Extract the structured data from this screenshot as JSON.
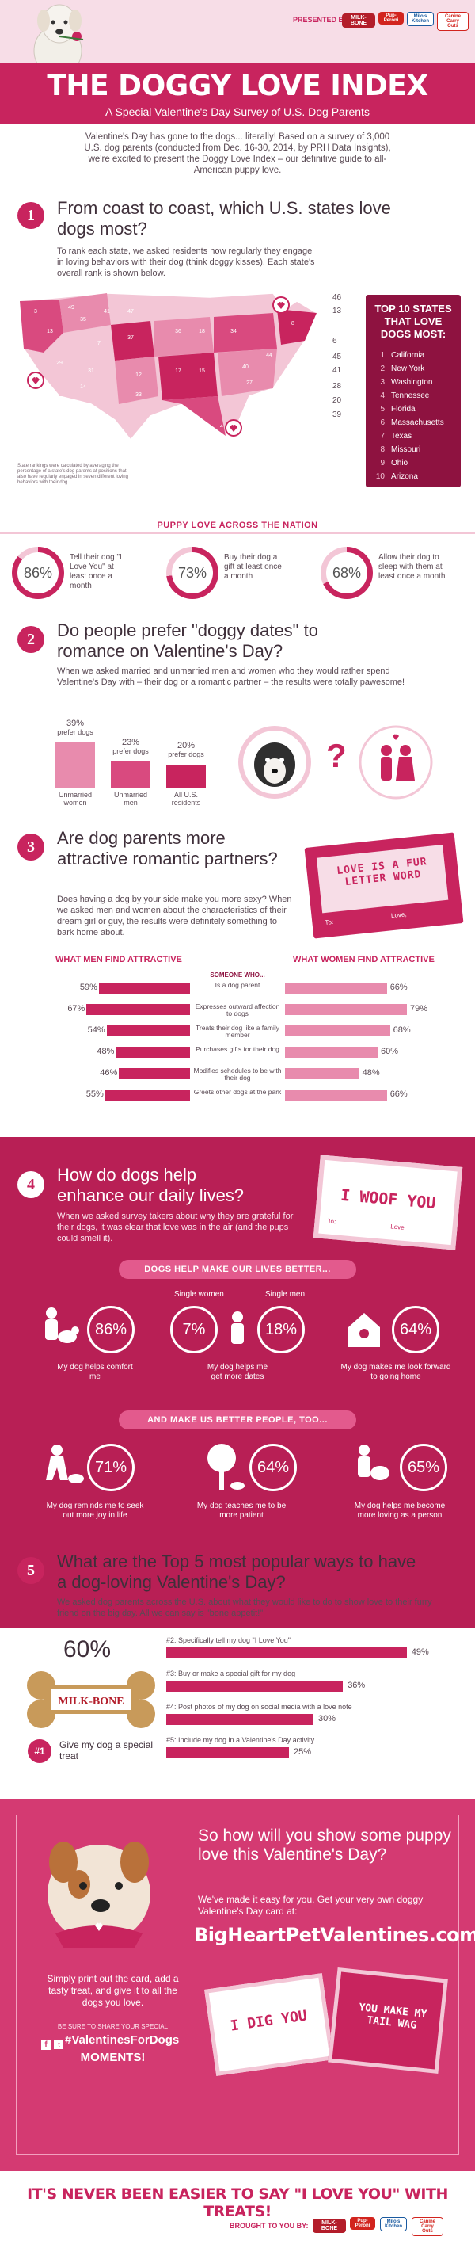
{
  "header": {
    "presented_by": "PRESENTED BY:",
    "brands": [
      "MILK-BONE",
      "Pup-Peroni",
      "Milo's Kitchen",
      "Canine Carry Outs"
    ],
    "title": "THE DOGGY LOVE INDEX",
    "subtitle": "A Special Valentine's Day Survey of U.S. Dog Parents",
    "intro": "Valentine's Day has gone to the dogs... literally! Based on a survey of 3,000 U.S. dog parents (conducted from Dec. 16-30, 2014, by PRH Data Insights), we're excited to present the Doggy Love Index – our definitive guide to all-American puppy love."
  },
  "section1": {
    "num": "1",
    "title": "From coast to coast, which U.S. states love dogs most?",
    "text": "To rank each state, we asked residents how regularly they engage in loving behaviors with their dog (think doggy kisses). Each state's overall rank is shown below.",
    "map_note": "State rankings were calculated by averaging the percentage of a state's dog parents at positions that also have regularly engaged in seven different loving behaviors with their dog.",
    "top10_title": "TOP 10 STATES THAT LOVE DOGS MOST:",
    "top10": [
      "California",
      "New York",
      "Washington",
      "Tennessee",
      "Florida",
      "Massachusetts",
      "Texas",
      "Missouri",
      "Ohio",
      "Arizona"
    ],
    "top10_nums": [
      "1",
      "2",
      "3",
      "4",
      "5",
      "6",
      "7",
      "8",
      "9",
      "10"
    ],
    "map_numbers": [
      "3",
      "49",
      "13",
      "35",
      "41",
      "47",
      "37",
      "36",
      "18",
      "34",
      "7",
      "29",
      "31",
      "12",
      "17",
      "15",
      "40",
      "14",
      "33",
      "5",
      "4",
      "27",
      "44",
      "8",
      "32",
      "48",
      "22",
      "38",
      "10",
      "26",
      "1",
      "30",
      "42",
      "11",
      "9",
      "39",
      "43",
      "45",
      "20",
      "23",
      "21",
      "6",
      "46",
      "24",
      "25",
      "16",
      "19",
      "28",
      "2",
      "50"
    ],
    "side_numbers": [
      "46",
      "13",
      "6",
      "45",
      "41",
      "28",
      "20",
      "39"
    ]
  },
  "puppy_love": {
    "banner": "PUPPY LOVE ACROSS THE NATION",
    "items": [
      {
        "pct": "86%",
        "text": "Tell their dog \"I Love You\" at least once a month"
      },
      {
        "pct": "73%",
        "text": "Buy their dog a gift at least once a month"
      },
      {
        "pct": "68%",
        "text": "Allow their dog to sleep with them at least once a month"
      }
    ]
  },
  "section2": {
    "num": "2",
    "title": "Do people prefer \"doggy dates\" to romance on Valentine's Day?",
    "text": "When we asked married and unmarried men and women who they would rather spend Valentine's Day with – their dog or a romantic partner – the results were totally pawesome!",
    "bars": [
      {
        "pct": "39%",
        "sub": "prefer dogs",
        "value": 39,
        "label": "Unmarried women"
      },
      {
        "pct": "23%",
        "sub": "prefer dogs",
        "value": 23,
        "label": "Unmarried men"
      },
      {
        "pct": "20%",
        "sub": "prefer dogs",
        "value": 20,
        "label": "All U.S. residents"
      }
    ],
    "question_mark": "?"
  },
  "section3": {
    "num": "3",
    "title": "Are dog parents more attractive romantic partners?",
    "text": "Does having a dog by your side make you more sexy? When we asked men and women about the characteristics of their dream girl or guy, the results were definitely something to bark home about.",
    "card_text": "LOVE IS A FUR LETTER WORD",
    "card_to": "To:",
    "card_from": "Love,",
    "men_header": "WHAT MEN FIND ATTRACTIVE",
    "women_header": "WHAT WOMEN FIND ATTRACTIVE",
    "middle_header": "SOMEONE WHO...",
    "rows": [
      {
        "label": "Is a dog parent",
        "men": 59,
        "men_pct": "59%",
        "women": 66,
        "women_pct": "66%"
      },
      {
        "label": "Expresses outward affection to dogs",
        "men": 67,
        "men_pct": "67%",
        "women": 79,
        "women_pct": "79%"
      },
      {
        "label": "Treats their dog like a family member",
        "men": 54,
        "men_pct": "54%",
        "women": 68,
        "women_pct": "68%"
      },
      {
        "label": "Purchases gifts for their dog",
        "men": 48,
        "men_pct": "48%",
        "women": 60,
        "women_pct": "60%"
      },
      {
        "label": "Modifies schedules to be with their dog",
        "men": 46,
        "men_pct": "46%",
        "women": 48,
        "women_pct": "48%"
      },
      {
        "label": "Greets other dogs at the park",
        "men": 55,
        "men_pct": "55%",
        "women": 66,
        "women_pct": "66%"
      }
    ]
  },
  "section4": {
    "num": "4",
    "title": "How do dogs help enhance our daily lives?",
    "text": "When we asked survey takers about why they are grateful for their dogs, it was clear that love was in the air (and the pups could smell it).",
    "card_text": "I WOOF YOU",
    "card_to": "To:",
    "card_from": "Love,",
    "banner1": "DOGS HELP MAKE OUR LIVES BETTER...",
    "single_women": "Single women",
    "single_men": "Single men",
    "better": [
      {
        "pct": "86%",
        "text": "My dog helps comfort me"
      },
      {
        "pct": "7%",
        "text": "My dog helps me"
      },
      {
        "pct": "18%",
        "text": "get more dates"
      },
      {
        "pct": "64%",
        "text": "My dog makes me look forward to going home"
      }
    ],
    "banner2": "AND MAKE US BETTER PEOPLE, TOO...",
    "people": [
      {
        "pct": "71%",
        "text": "My dog reminds me to seek out more joy in life"
      },
      {
        "pct": "64%",
        "text": "My dog teaches me to be more patient"
      },
      {
        "pct": "65%",
        "text": "My dog helps me become more loving as a person"
      }
    ]
  },
  "section5": {
    "num": "5",
    "title": "What are the Top 5 most popular ways to have a dog-loving Valentine's Day?",
    "text": "We asked dog parents across the U.S. about what they would like to do to show love to their furry friend on the big day. All we can say is \"bone appetit!\"",
    "top_pct": "60%",
    "bone_label": "MILK-BONE",
    "top_rank": "#1",
    "top_text": "Give my dog a special treat",
    "items": [
      {
        "label": "#2: Specifically tell my dog \"I Love You\"",
        "value": 49,
        "pct": "49%"
      },
      {
        "label": "#3: Buy or make a special gift for my dog",
        "value": 36,
        "pct": "36%"
      },
      {
        "label": "#4: Post photos of my dog on social media with a love note",
        "value": 30,
        "pct": "30%"
      },
      {
        "label": "#5: Include my dog in a Valentine's Day activity",
        "value": 25,
        "pct": "25%"
      }
    ]
  },
  "cta": {
    "title": "So how will you show some puppy love this Valentine's Day?",
    "text": "We've made it easy for you. Get your very own doggy Valentine's Day card at:",
    "url": "BigHeartPetValentines.com",
    "print_text": "Simply print out the card, add a tasty treat, and give it to all the dogs you love.",
    "share": "BE SURE TO SHARE YOUR SPECIAL",
    "hashtag": "#ValentinesForDogs",
    "moments": "MOMENTS!",
    "card1": "I DIG YOU",
    "card2": "YOU MAKE MY TAIL WAG"
  },
  "footer": {
    "tagline": "IT'S NEVER BEEN EASIER TO SAY \"I LOVE YOU\" WITH TREATS!",
    "brought_by": "BROUGHT TO YOU BY:",
    "brands": [
      "MILK-BONE",
      "Pup-Peroni",
      "Milo's Kitchen",
      "Canine Carry Outs"
    ]
  },
  "colors": {
    "primary": "#c8245e",
    "light": "#f3c6d6",
    "dark": "#8e1240"
  }
}
